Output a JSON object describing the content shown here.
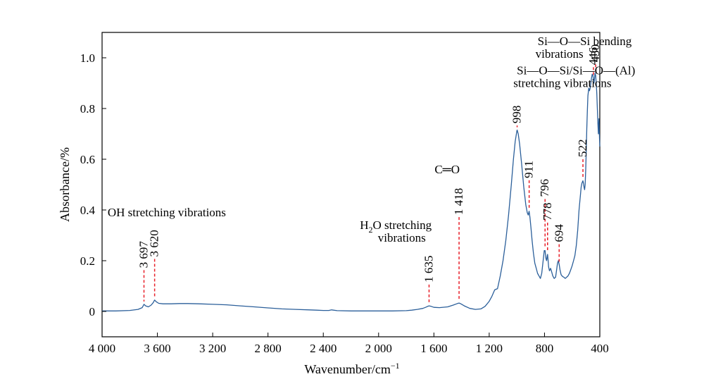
{
  "chart_data": {
    "type": "line",
    "xlabel_main": "Wavenumber/cm",
    "xlabel_sup": "−1",
    "ylabel": "Absorbance/%",
    "xlim": [
      4000,
      400
    ],
    "ylim": [
      -0.1,
      1.1
    ],
    "xticks": [
      {
        "value": 4000,
        "label": "4 000"
      },
      {
        "value": 3600,
        "label": "3 600"
      },
      {
        "value": 3200,
        "label": "3 200"
      },
      {
        "value": 2800,
        "label": "2 800"
      },
      {
        "value": 2400,
        "label": "2 400"
      },
      {
        "value": 2000,
        "label": "2 000"
      },
      {
        "value": 1600,
        "label": "1 600"
      },
      {
        "value": 1200,
        "label": "1 200"
      },
      {
        "value": 800,
        "label": "800"
      },
      {
        "value": 400,
        "label": "400"
      }
    ],
    "yticks": [
      {
        "value": 0,
        "label": "0"
      },
      {
        "value": 0.2,
        "label": "0.2"
      },
      {
        "value": 0.4,
        "label": "0.4"
      },
      {
        "value": 0.6,
        "label": "0.6"
      },
      {
        "value": 0.8,
        "label": "0.8"
      },
      {
        "value": 1.0,
        "label": "1.0"
      }
    ],
    "line_color": "#2b5f9a",
    "marker_color": "#e8202a",
    "series": [
      {
        "x": [
          4000,
          3900,
          3800,
          3740,
          3710,
          3697,
          3685,
          3665,
          3645,
          3630,
          3620,
          3608,
          3590,
          3560,
          3500,
          3440,
          3380,
          3300,
          3200,
          3100,
          3000,
          2900,
          2800,
          2700,
          2600,
          2500,
          2450,
          2400,
          2360,
          2340,
          2300,
          2200,
          2100,
          2000,
          1900,
          1800,
          1760,
          1720,
          1680,
          1660,
          1645,
          1635,
          1620,
          1600,
          1560,
          1500,
          1460,
          1430,
          1418,
          1405,
          1380,
          1340,
          1300,
          1260,
          1230,
          1200,
          1180,
          1160,
          1140,
          1120,
          1100,
          1080,
          1060,
          1040,
          1025,
          1012,
          1000,
          998,
          990,
          980,
          965,
          950,
          935,
          925,
          918,
          911,
          905,
          898,
          890,
          880,
          870,
          860,
          850,
          840,
          830,
          820,
          810,
          802,
          796,
          790,
          785,
          780,
          778,
          774,
          770,
          764,
          756,
          748,
          740,
          730,
          720,
          712,
          706,
          700,
          694,
          688,
          680,
          670,
          660,
          650,
          640,
          630,
          620,
          610,
          600,
          590,
          580,
          570,
          560,
          550,
          540,
          535,
          530,
          525,
          522,
          518,
          514,
          510,
          506,
          502,
          498,
          494,
          490,
          486,
          480,
          475,
          470,
          465,
          460,
          455,
          450,
          446,
          442,
          438,
          434,
          430,
          426,
          422,
          418,
          414,
          410,
          406,
          402,
          400
        ],
        "y": [
          0.002,
          0.002,
          0.004,
          0.008,
          0.015,
          0.028,
          0.022,
          0.018,
          0.025,
          0.035,
          0.045,
          0.038,
          0.032,
          0.03,
          0.03,
          0.031,
          0.031,
          0.03,
          0.028,
          0.026,
          0.022,
          0.018,
          0.014,
          0.01,
          0.008,
          0.006,
          0.005,
          0.004,
          0.004,
          0.006,
          0.003,
          0.002,
          0.002,
          0.002,
          0.002,
          0.003,
          0.005,
          0.008,
          0.012,
          0.016,
          0.02,
          0.022,
          0.02,
          0.016,
          0.015,
          0.018,
          0.025,
          0.031,
          0.033,
          0.03,
          0.022,
          0.012,
          0.008,
          0.01,
          0.02,
          0.04,
          0.06,
          0.085,
          0.09,
          0.14,
          0.2,
          0.28,
          0.38,
          0.5,
          0.6,
          0.67,
          0.712,
          0.715,
          0.7,
          0.66,
          0.58,
          0.49,
          0.42,
          0.39,
          0.38,
          0.395,
          0.37,
          0.33,
          0.28,
          0.23,
          0.19,
          0.17,
          0.15,
          0.14,
          0.13,
          0.15,
          0.2,
          0.24,
          0.24,
          0.21,
          0.2,
          0.22,
          0.225,
          0.2,
          0.175,
          0.16,
          0.17,
          0.155,
          0.14,
          0.13,
          0.135,
          0.165,
          0.19,
          0.2,
          0.185,
          0.165,
          0.145,
          0.138,
          0.135,
          0.13,
          0.135,
          0.14,
          0.15,
          0.165,
          0.18,
          0.2,
          0.22,
          0.26,
          0.32,
          0.4,
          0.46,
          0.49,
          0.505,
          0.512,
          0.515,
          0.505,
          0.49,
          0.48,
          0.5,
          0.56,
          0.64,
          0.72,
          0.79,
          0.85,
          0.88,
          0.87,
          0.88,
          0.9,
          0.92,
          0.935,
          0.93,
          0.915,
          0.9,
          0.92,
          0.94,
          0.93,
          0.9,
          0.86,
          0.8,
          0.74,
          0.7,
          0.76,
          0.68,
          0.65
        ]
      }
    ],
    "peaks": [
      {
        "x": 3697,
        "label": "3 697",
        "y_top": 0.163
      },
      {
        "x": 3620,
        "label": "3 620",
        "y_top": 0.207
      },
      {
        "x": 1635,
        "label": "1 635",
        "y_top": 0.106
      },
      {
        "x": 1418,
        "label": "1 418",
        "y_top": 0.372
      },
      {
        "x": 998,
        "label": "998",
        "y_top": 0.733
      },
      {
        "x": 911,
        "label": "911",
        "y_top": 0.517
      },
      {
        "x": 796,
        "label": "796",
        "y_top": 0.443
      },
      {
        "x": 778,
        "label": "778",
        "y_top": 0.35
      },
      {
        "x": 694,
        "label": "694",
        "y_top": 0.265
      },
      {
        "x": 522,
        "label": "522",
        "y_top": 0.6
      },
      {
        "x": 446,
        "label": "446",
        "y_top": 0.963
      },
      {
        "x": 430,
        "label": "430",
        "y_top": 0.974
      }
    ],
    "annotations": [
      {
        "text": "OH stretching vibrations",
        "x": 3960,
        "y": 0.375
      },
      {
        "text": "H",
        "sub": "2",
        "rest": "O stretching",
        "x": 2135,
        "y": 0.325
      },
      {
        "text": "vibrations",
        "x": 2005,
        "y": 0.275
      },
      {
        "text": "C═O",
        "x": 1595,
        "y": 0.545
      },
      {
        "text": "Si—O—Si bending",
        "x": 850,
        "y": 1.05
      },
      {
        "text": "vibrations",
        "x": 865,
        "y": 1.0
      },
      {
        "text": "Si—O—Si/Si—O—(Al)",
        "x": 1000,
        "y": 0.935
      },
      {
        "text": "stretching vibrations",
        "x": 1025,
        "y": 0.885
      }
    ]
  }
}
